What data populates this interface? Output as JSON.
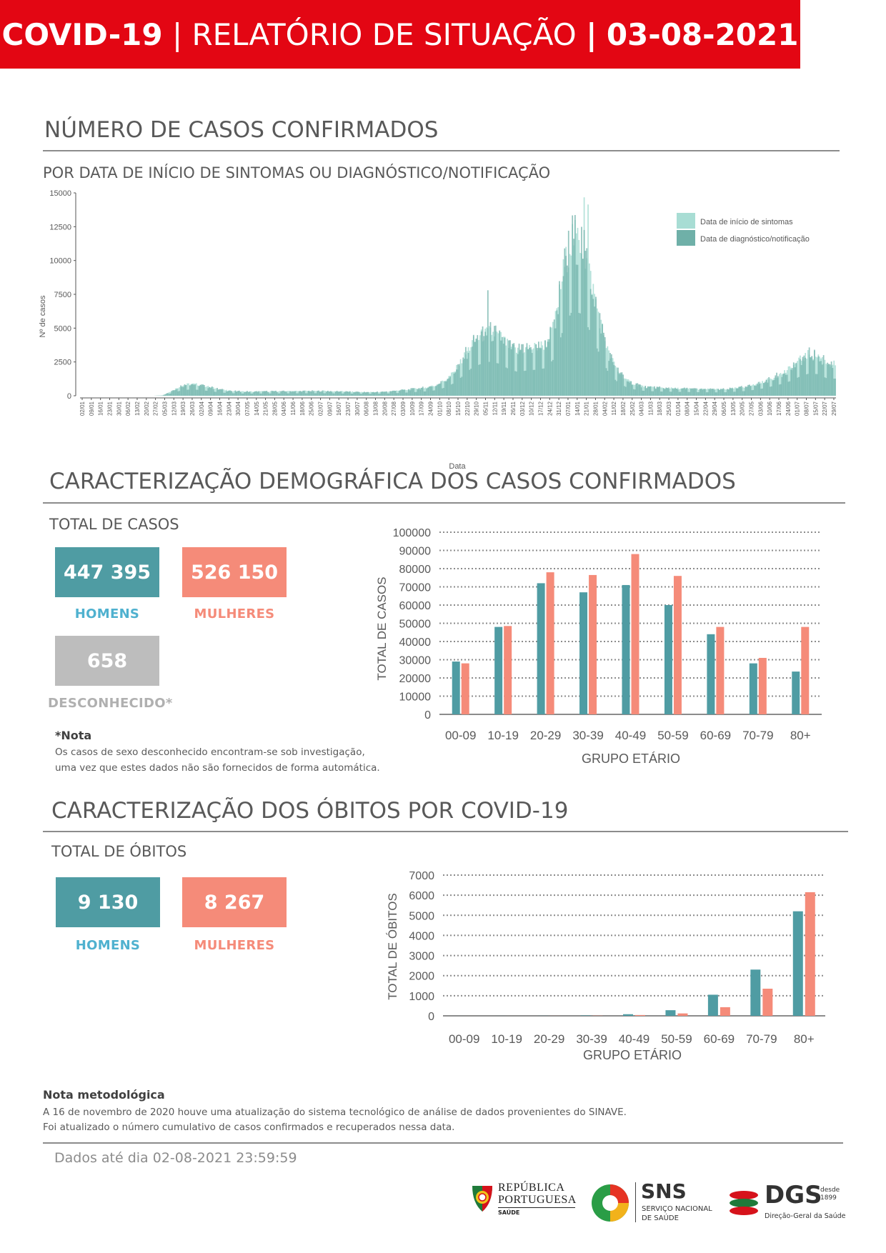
{
  "banner": {
    "part1": "COVID-19",
    "sep1": "|",
    "part2": "RELATÓRIO DE SITUAÇÃO",
    "sep2": "|",
    "part3": "03-08-2021"
  },
  "section1": {
    "title": "NÚMERO DE CASOS CONFIRMADOS",
    "subtitle": "POR DATA DE INÍCIO DE SINTOMAS OU DIAGNÓSTICO/NOTIFICAÇÃO"
  },
  "section2": {
    "title": "CARACTERIZAÇÃO DEMOGRÁFICA DOS CASOS CONFIRMADOS",
    "total_label": "TOTAL DE CASOS",
    "men_value": "447 395",
    "men_label": "HOMENS",
    "women_value": "526 150",
    "women_label": "MULHERES",
    "unknown_value": "658",
    "unknown_label": "DESCONHECIDO*",
    "note_title": "*Nota",
    "note_line1": "Os casos de sexo desconhecido encontram-se sob investigação,",
    "note_line2": "uma vez que estes dados não são fornecidos de forma automática."
  },
  "section3": {
    "title": "CARACTERIZAÇÃO DOS ÓBITOS POR COVID-19",
    "total_label": "TOTAL DE ÓBITOS",
    "men_value": "9 130",
    "men_label": "HOMENS",
    "women_value": "8 267",
    "women_label": "MULHERES"
  },
  "footer": {
    "method_title": "Nota metodológica",
    "method_line1": "A 16 de novembro de 2020 houve uma atualização do sistema tecnológico de análise de dados provenientes do SINAVE.",
    "method_line2": "Foi atualizado o número cumulativo de casos confirmados e recuperados nessa data.",
    "data_until": "Dados até dia 02-08-2021 23:59:59",
    "logo1_line1": "REPÚBLICA",
    "logo1_line2": "PORTUGUESA",
    "logo1_line3": "SAÚDE",
    "logo2_title": "SNS",
    "logo2_line1": "SERVIÇO NACIONAL",
    "logo2_line2": "DE SAÚDE",
    "logo3_title": "DGS",
    "logo3_since1": "desde",
    "logo3_since2": "1899",
    "logo3_sub": "Direção-Geral da Saúde"
  },
  "colors": {
    "red": "#e30613",
    "teal": "#4f9ca3",
    "salmon": "#f58b79",
    "grey": "#bdbdbd",
    "light_teal": "#a8ddd4",
    "dark_teal": "#6fb0a8"
  },
  "chart_data": [
    {
      "type": "bar",
      "title": "",
      "xlabel": "Data",
      "ylabel": "Nº de casos",
      "ylim": [
        0,
        15000
      ],
      "yticks": [
        0,
        2500,
        5000,
        7500,
        10000,
        12500,
        15000
      ],
      "xticks": [
        "02/01",
        "09/01",
        "16/01",
        "23/01",
        "30/01",
        "06/02",
        "13/02",
        "20/02",
        "27/02",
        "05/03",
        "12/03",
        "19/03",
        "26/03",
        "02/04",
        "09/04",
        "16/04",
        "23/04",
        "30/04",
        "07/05",
        "14/05",
        "21/05",
        "28/05",
        "04/06",
        "11/06",
        "18/06",
        "25/06",
        "02/07",
        "09/07",
        "16/07",
        "23/07",
        "30/07",
        "06/08",
        "13/08",
        "20/08",
        "27/08",
        "03/09",
        "10/09",
        "17/09",
        "24/09",
        "01/10",
        "08/10",
        "15/10",
        "22/10",
        "29/10",
        "05/11",
        "12/11",
        "19/11",
        "26/11",
        "03/12",
        "10/12",
        "17/12",
        "24/12",
        "31/12",
        "07/01",
        "14/01",
        "21/01",
        "28/01",
        "04/02",
        "11/02",
        "18/02",
        "25/02",
        "04/03",
        "11/03",
        "18/03",
        "25/03",
        "01/04",
        "08/04",
        "15/04",
        "22/04",
        "29/04",
        "06/05",
        "13/05",
        "20/05",
        "27/05",
        "03/06",
        "10/06",
        "17/06",
        "24/06",
        "01/07",
        "08/07",
        "15/07",
        "22/07",
        "29/07"
      ],
      "legend": [
        "Data de início de sintomas",
        "Data de diagnóstico/notificação"
      ],
      "legend_position": "top-right",
      "weekly_profile": [
        0,
        0,
        0,
        0,
        0,
        0,
        0,
        0,
        0,
        30,
        350,
        700,
        850,
        800,
        650,
        500,
        380,
        330,
        300,
        300,
        310,
        320,
        320,
        330,
        330,
        340,
        340,
        340,
        320,
        300,
        280,
        260,
        260,
        280,
        320,
        380,
        450,
        520,
        600,
        750,
        1100,
        1700,
        2700,
        3800,
        4300,
        4600,
        4300,
        3600,
        3200,
        3400,
        3500,
        3700,
        5000,
        9000,
        11500,
        11000,
        8500,
        5500,
        3000,
        1800,
        1100,
        800,
        650,
        600,
        560,
        540,
        520,
        500,
        480,
        470,
        460,
        480,
        560,
        640,
        800,
        1000,
        1300,
        1600,
        2000,
        2600,
        3000,
        2900,
        2300
      ]
    },
    {
      "type": "bar",
      "title": "",
      "xlabel": "GRUPO ETÁRIO",
      "ylabel": "TOTAL DE CASOS",
      "categories": [
        "00-09",
        "10-19",
        "20-29",
        "30-39",
        "40-49",
        "50-59",
        "60-69",
        "70-79",
        "80+"
      ],
      "ylim": [
        0,
        100000
      ],
      "yticks": [
        0,
        10000,
        20000,
        30000,
        40000,
        50000,
        60000,
        70000,
        80000,
        90000,
        100000
      ],
      "series": [
        {
          "values": [
            29000,
            48000,
            72000,
            67000,
            71000,
            60000,
            44000,
            28000,
            23500
          ]
        },
        {
          "values": [
            28000,
            48500,
            78000,
            76500,
            88000,
            76000,
            48000,
            31000,
            48000
          ]
        }
      ]
    },
    {
      "type": "bar",
      "title": "",
      "xlabel": "GRUPO ETÁRIO",
      "ylabel": "TOTAL DE ÓBITOS",
      "categories": [
        "00-09",
        "10-19",
        "20-29",
        "30-39",
        "40-49",
        "50-59",
        "60-69",
        "70-79",
        "80+"
      ],
      "ylim": [
        0,
        7000
      ],
      "yticks": [
        0,
        1000,
        2000,
        3000,
        4000,
        5000,
        6000,
        7000
      ],
      "series": [
        {
          "values": [
            1,
            2,
            5,
            20,
            80,
            280,
            1050,
            2300,
            5200
          ]
        },
        {
          "values": [
            1,
            1,
            3,
            10,
            40,
            120,
            430,
            1350,
            6150
          ]
        }
      ]
    }
  ]
}
